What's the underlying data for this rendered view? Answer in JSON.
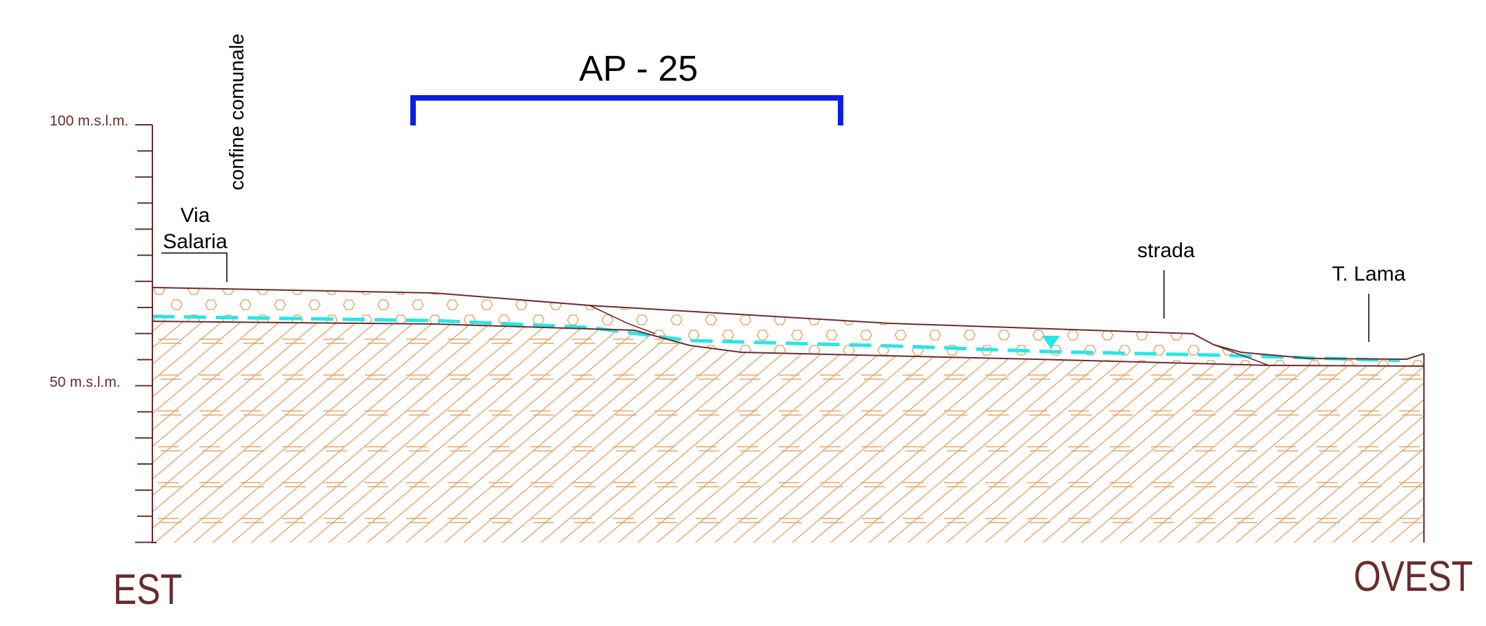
{
  "title": "AP - 25",
  "elevation_labels": {
    "upper": "100 m.s.l.m.",
    "lower": "50 m.s.l.m."
  },
  "place_labels": {
    "boundary": "confine comunale",
    "via_line1": "Via",
    "via_line2": "Salaria",
    "road": "strada",
    "stream": "T. Lama"
  },
  "direction_labels": {
    "left": "EST",
    "right": "OVEST"
  },
  "colors": {
    "profile_line": "#6b2b2b",
    "label_brown": "#6b2b2b",
    "section_bracket": "#0b1fe0",
    "water_table": "#29e6e6",
    "hatch": "#e3a56b"
  }
}
